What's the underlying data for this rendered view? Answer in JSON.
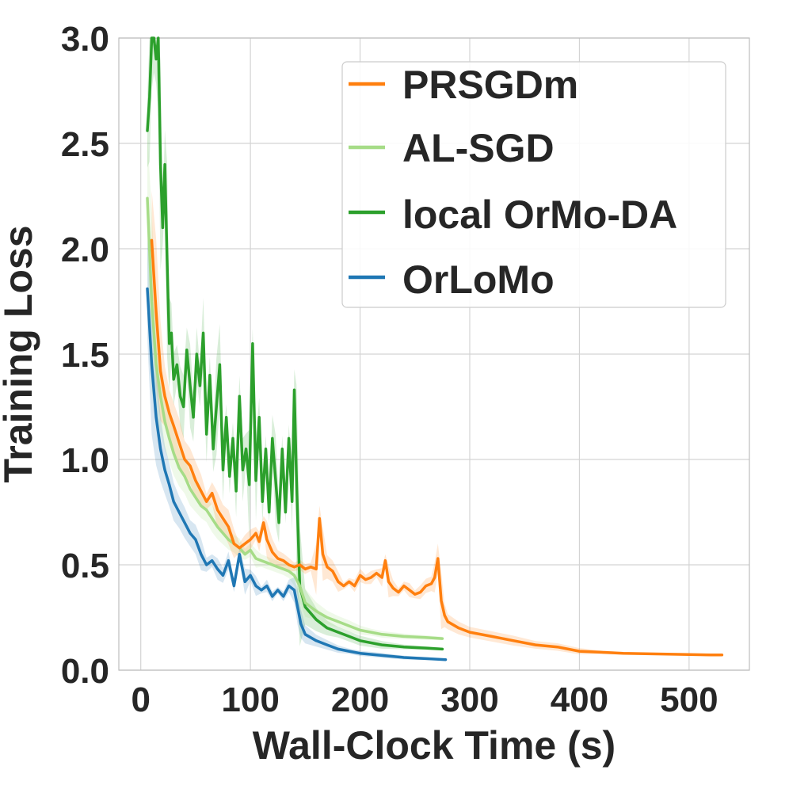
{
  "chart_data": {
    "type": "line",
    "title": "",
    "xlabel": "Wall-Clock Time (s)",
    "ylabel": "Training Loss",
    "xlim": [
      -20,
      555
    ],
    "ylim": [
      0,
      3.0
    ],
    "xticks": [
      0,
      100,
      200,
      300,
      400,
      500
    ],
    "yticks": [
      0.0,
      0.5,
      1.0,
      1.5,
      2.0,
      2.5,
      3.0
    ],
    "xtick_labels": [
      "0",
      "100",
      "200",
      "300",
      "400",
      "500"
    ],
    "ytick_labels": [
      "0.0",
      "0.5",
      "1.0",
      "1.5",
      "2.0",
      "2.5",
      "3.0"
    ],
    "grid": true,
    "legend_position": "top-right",
    "series": [
      {
        "name": "PRSGDm",
        "color": "#ff7f0e",
        "x": [
          10,
          14,
          18,
          22,
          26,
          30,
          35,
          40,
          45,
          50,
          55,
          60,
          65,
          70,
          75,
          80,
          85,
          90,
          95,
          100,
          105,
          108,
          112,
          115,
          120,
          125,
          130,
          135,
          140,
          145,
          150,
          155,
          160,
          163,
          166,
          170,
          175,
          180,
          185,
          190,
          195,
          200,
          205,
          210,
          215,
          220,
          223,
          226,
          230,
          235,
          240,
          245,
          250,
          255,
          260,
          265,
          268,
          271,
          274,
          277,
          280,
          290,
          300,
          320,
          340,
          360,
          380,
          400,
          420,
          440,
          460,
          480,
          500,
          520,
          530
        ],
        "values": [
          2.04,
          1.7,
          1.42,
          1.3,
          1.22,
          1.16,
          1.08,
          1.0,
          0.97,
          0.9,
          0.85,
          0.8,
          0.84,
          0.76,
          0.72,
          0.68,
          0.6,
          0.58,
          0.6,
          0.62,
          0.65,
          0.61,
          0.7,
          0.62,
          0.56,
          0.53,
          0.52,
          0.5,
          0.49,
          0.5,
          0.48,
          0.49,
          0.48,
          0.72,
          0.55,
          0.49,
          0.47,
          0.42,
          0.4,
          0.42,
          0.4,
          0.45,
          0.43,
          0.44,
          0.46,
          0.44,
          0.52,
          0.42,
          0.39,
          0.37,
          0.4,
          0.38,
          0.36,
          0.37,
          0.4,
          0.41,
          0.44,
          0.53,
          0.33,
          0.26,
          0.23,
          0.2,
          0.18,
          0.16,
          0.14,
          0.12,
          0.11,
          0.09,
          0.085,
          0.08,
          0.078,
          0.076,
          0.074,
          0.072,
          0.072
        ]
      },
      {
        "name": "AL-SGD",
        "color": "#a6dc87",
        "x": [
          6,
          10,
          14,
          18,
          22,
          26,
          30,
          35,
          40,
          45,
          50,
          55,
          60,
          65,
          70,
          75,
          80,
          85,
          90,
          95,
          100,
          105,
          110,
          115,
          120,
          125,
          130,
          135,
          140,
          145,
          150,
          160,
          170,
          180,
          190,
          200,
          210,
          220,
          240,
          260,
          275
        ],
        "values": [
          2.24,
          1.75,
          1.45,
          1.3,
          1.18,
          1.1,
          1.03,
          0.96,
          0.92,
          0.86,
          0.82,
          0.78,
          0.76,
          0.72,
          0.68,
          0.65,
          0.62,
          0.6,
          0.58,
          0.55,
          0.57,
          0.53,
          0.52,
          0.51,
          0.5,
          0.49,
          0.48,
          0.47,
          0.45,
          0.4,
          0.32,
          0.28,
          0.25,
          0.23,
          0.21,
          0.19,
          0.18,
          0.17,
          0.16,
          0.155,
          0.15
        ]
      },
      {
        "name": "local OrMo-DA",
        "color": "#2ca02c",
        "x": [
          6,
          8,
          10,
          12,
          14,
          16,
          18,
          20,
          22,
          24,
          26,
          28,
          30,
          33,
          36,
          39,
          42,
          45,
          48,
          51,
          54,
          57,
          60,
          63,
          66,
          69,
          72,
          75,
          78,
          81,
          84,
          87,
          90,
          93,
          96,
          99,
          102,
          105,
          108,
          111,
          114,
          117,
          120,
          123,
          126,
          129,
          132,
          135,
          138,
          140,
          142,
          145,
          150,
          160,
          170,
          180,
          190,
          200,
          220,
          240,
          260,
          275
        ],
        "values": [
          2.56,
          2.72,
          3.0,
          3.0,
          2.9,
          3.0,
          2.4,
          2.1,
          2.4,
          1.95,
          1.55,
          1.6,
          1.38,
          1.45,
          1.3,
          1.25,
          1.52,
          1.35,
          1.2,
          1.5,
          1.35,
          1.6,
          1.12,
          1.4,
          1.05,
          1.25,
          1.45,
          0.95,
          1.2,
          0.92,
          1.1,
          0.85,
          1.3,
          0.95,
          1.05,
          0.88,
          1.55,
          0.9,
          1.2,
          0.8,
          1.05,
          0.75,
          1.1,
          0.9,
          0.7,
          1.05,
          0.75,
          1.1,
          0.8,
          1.33,
          0.9,
          0.4,
          0.3,
          0.24,
          0.2,
          0.18,
          0.16,
          0.14,
          0.12,
          0.11,
          0.105,
          0.1
        ]
      },
      {
        "name": "OrLoMo",
        "color": "#1f77b4",
        "x": [
          6,
          10,
          14,
          18,
          22,
          26,
          30,
          35,
          40,
          45,
          50,
          55,
          60,
          65,
          70,
          75,
          80,
          85,
          90,
          95,
          100,
          105,
          110,
          115,
          120,
          125,
          130,
          135,
          140,
          143,
          146,
          150,
          160,
          170,
          180,
          190,
          200,
          220,
          240,
          260,
          278
        ],
        "values": [
          1.81,
          1.45,
          1.2,
          1.05,
          0.95,
          0.88,
          0.8,
          0.75,
          0.7,
          0.65,
          0.62,
          0.55,
          0.5,
          0.52,
          0.48,
          0.45,
          0.52,
          0.4,
          0.55,
          0.42,
          0.45,
          0.4,
          0.38,
          0.4,
          0.35,
          0.38,
          0.35,
          0.4,
          0.38,
          0.3,
          0.22,
          0.17,
          0.14,
          0.12,
          0.1,
          0.09,
          0.08,
          0.07,
          0.06,
          0.055,
          0.05
        ]
      }
    ]
  }
}
